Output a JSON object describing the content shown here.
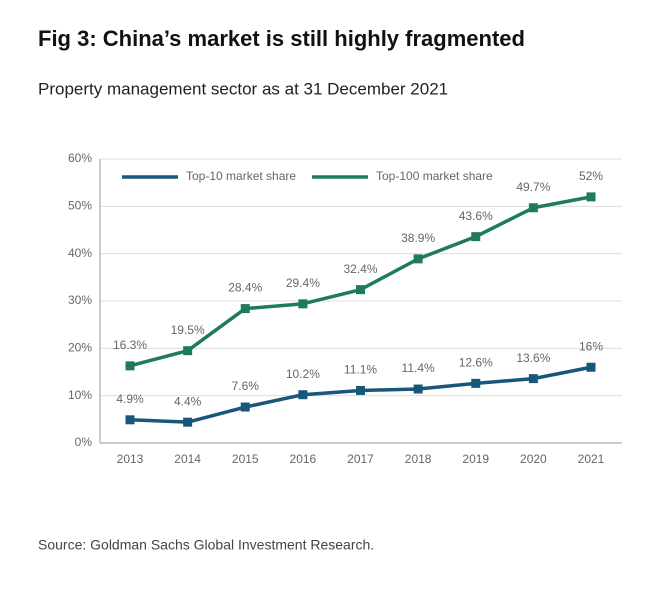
{
  "header": {
    "title": "Fig 3: China’s market is still highly fragmented",
    "subtitle": "Property management sector as at 31 December 2021"
  },
  "chart_data": {
    "type": "line",
    "categories": [
      "2013",
      "2014",
      "2015",
      "2016",
      "2017",
      "2018",
      "2019",
      "2020",
      "2021"
    ],
    "series": [
      {
        "name": "Top-10 market share",
        "color": "#17587a",
        "values": [
          4.9,
          4.4,
          7.6,
          10.2,
          11.1,
          11.4,
          12.6,
          13.6,
          16
        ],
        "value_labels": [
          "4.9%",
          "4.4%",
          "7.6%",
          "10.2%",
          "11.1%",
          "11.4%",
          "12.6%",
          "13.6%",
          "16%"
        ]
      },
      {
        "name": "Top-100 market share",
        "color": "#1e7b5e",
        "values": [
          16.3,
          19.5,
          28.4,
          29.4,
          32.4,
          38.9,
          43.6,
          49.7,
          52
        ],
        "value_labels": [
          "16.3%",
          "19.5%",
          "28.4%",
          "29.4%",
          "32.4%",
          "38.9%",
          "43.6%",
          "49.7%",
          "52%"
        ]
      }
    ],
    "ylim": [
      0,
      60
    ],
    "yticks": [
      {
        "value": 0,
        "label": "0%"
      },
      {
        "value": 10,
        "label": "10%"
      },
      {
        "value": 20,
        "label": "20%"
      },
      {
        "value": 30,
        "label": "30%"
      },
      {
        "value": 40,
        "label": "40%"
      },
      {
        "value": 50,
        "label": "50%"
      },
      {
        "value": 60,
        "label": "60%"
      }
    ],
    "grid": true
  },
  "footer": {
    "source": "Source: Goldman Sachs Global Investment Research."
  }
}
